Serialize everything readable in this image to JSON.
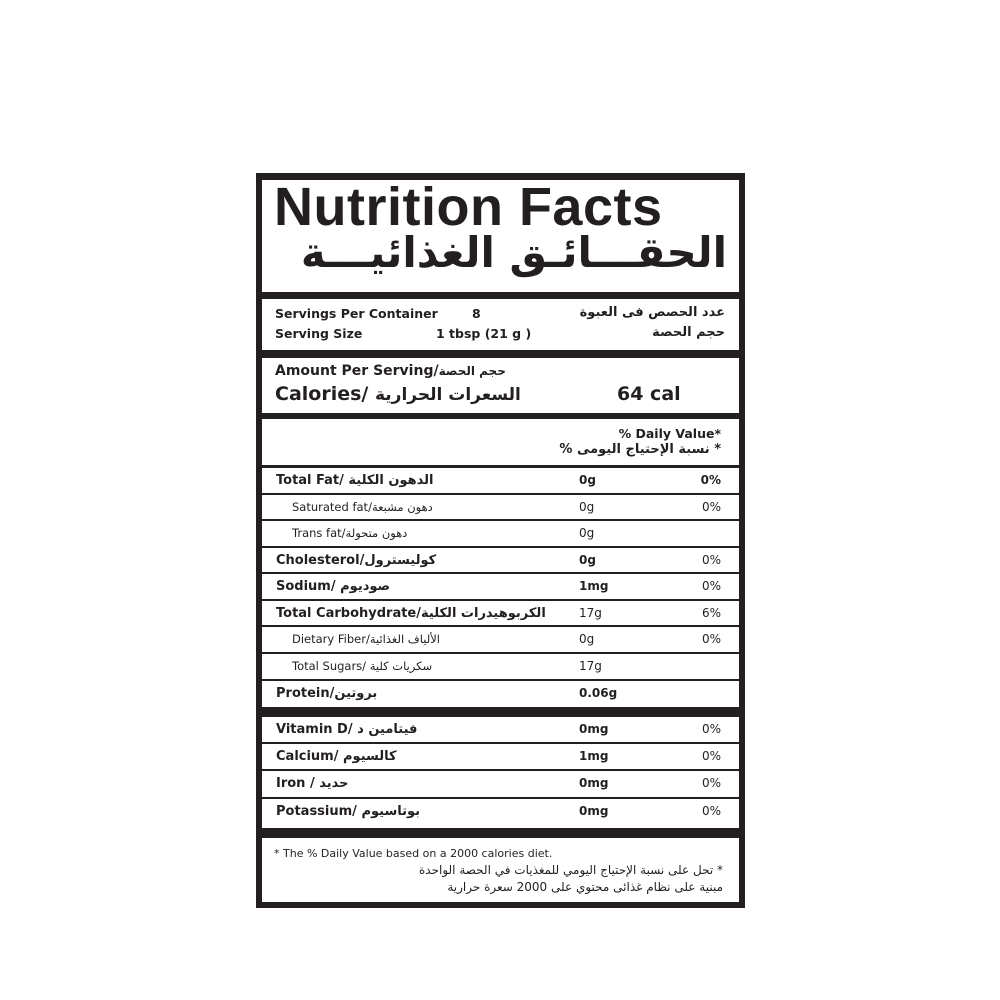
{
  "title": {
    "en": "Nutrition Facts",
    "ar": "الحقـــائـق الغذائيـــة"
  },
  "servings": {
    "per_container_label": "Servings Per Container",
    "per_container_value": "8",
    "per_container_ar": "عدد الحصص فى العبوة",
    "size_label": "Serving Size",
    "size_value": "1 tbsp (21 g )",
    "size_ar": "حجم الحصة"
  },
  "amount": {
    "label_en": "Amount Per Serving/",
    "label_ar": "حجم الحصة",
    "calories_en": "Calories/",
    "calories_ar": "السعرات الحرارية",
    "calories_value": "64 cal"
  },
  "dv_header": {
    "en": "% Daily Value*",
    "ar": "* نسبة الإحتياج اليومى %"
  },
  "nutrients": [
    {
      "en": "Total Fat/ ",
      "ar": "الدهون الكلية",
      "amount": "0g",
      "pct": "0%",
      "level": "main",
      "bold_values": true
    },
    {
      "en": "Saturated fat/",
      "ar": "دهون مشبعة",
      "amount": "0g",
      "pct": "0%",
      "level": "sub"
    },
    {
      "en": "Trans fat/",
      "ar": "دهون متحولة",
      "amount": "0g",
      "pct": "",
      "level": "sub"
    },
    {
      "en": "Cholesterol/",
      "ar": "كوليسترول",
      "amount": "0g",
      "pct": "0%",
      "level": "main"
    },
    {
      "en": "Sodium/ ",
      "ar": "صوديوم",
      "amount": "1mg",
      "pct": "0%",
      "level": "main"
    },
    {
      "en": "Total Carbohydrate/",
      "ar": "الكربوهيدرات الكلية",
      "amount": "17g",
      "pct": "6%",
      "level": "main"
    },
    {
      "en": "Dietary Fiber/",
      "ar": "الألياف الغذائية",
      "amount": "0g",
      "pct": "0%",
      "level": "sub"
    },
    {
      "en": "Total Sugars/ ",
      "ar": "سكريات كلية",
      "amount": "17g",
      "pct": "",
      "level": "sub"
    },
    {
      "en": "Protein/",
      "ar": "بروتين",
      "amount": "0.06g",
      "pct": "",
      "level": "main"
    }
  ],
  "minerals": [
    {
      "en": "Vitamin D/ ",
      "ar": "فيتامين د",
      "amount": "0mg",
      "pct": "0%"
    },
    {
      "en": "Calcium/ ",
      "ar": "كالسيوم",
      "amount": "1mg",
      "pct": "0%"
    },
    {
      "en": "Iron / ",
      "ar": "حديد",
      "amount": "0mg",
      "pct": "0%"
    },
    {
      "en": "Potassium/ ",
      "ar": "بوتاسيوم",
      "amount": "0mg",
      "pct": "0%"
    }
  ],
  "footnote": {
    "en": "* The % Daily Value based on a 2000 calories diet.",
    "ar_line1": "* تحل على نسبة الإحتياج اليومي للمغذيات في الحصة الواحدة",
    "ar_line2": "مبنية على نظام غذائى محتوي على 2000 سعرة حرارية"
  }
}
